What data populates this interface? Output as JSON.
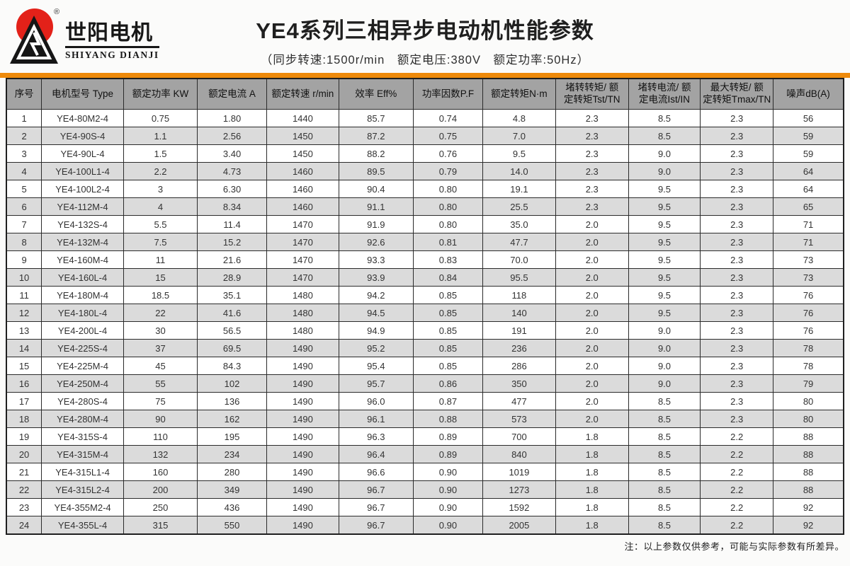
{
  "logo": {
    "name_cn": "世阳电机",
    "name_en": "SHIYANG DIANJI",
    "registered_mark": "®",
    "colors": {
      "sun_red": "#e32119",
      "mark_black": "#161616"
    }
  },
  "header": {
    "title": "YE4系列三相异步电动机性能参数",
    "subtitle": "（同步转速:1500r/min　额定电压:380V　额定功率:50Hz）"
  },
  "table": {
    "accent_color": "#ee8a0b",
    "header_bg": "#a3a3a3",
    "row_alt_bg": "#dbdbdb",
    "columns": [
      "序号",
      "电机型号 Type",
      "额定功率 KW",
      "额定电流 A",
      "额定转速 r/min",
      "效率 Eff%",
      "功率因数P.F",
      "额定转矩N·m",
      "堵转转矩/ 额\n定转矩Tst/TN",
      "堵转电流/ 额\n定电流Ist/IN",
      "最大转矩/ 额\n定转矩Tmax/TN",
      "噪声dB(A)"
    ],
    "rows": [
      [
        "1",
        "YE4-80M2-4",
        "0.75",
        "1.80",
        "1440",
        "85.7",
        "0.74",
        "4.8",
        "2.3",
        "8.5",
        "2.3",
        "56"
      ],
      [
        "2",
        "YE4-90S-4",
        "1.1",
        "2.56",
        "1450",
        "87.2",
        "0.75",
        "7.0",
        "2.3",
        "8.5",
        "2.3",
        "59"
      ],
      [
        "3",
        "YE4-90L-4",
        "1.5",
        "3.40",
        "1450",
        "88.2",
        "0.76",
        "9.5",
        "2.3",
        "9.0",
        "2.3",
        "59"
      ],
      [
        "4",
        "YE4-100L1-4",
        "2.2",
        "4.73",
        "1460",
        "89.5",
        "0.79",
        "14.0",
        "2.3",
        "9.0",
        "2.3",
        "64"
      ],
      [
        "5",
        "YE4-100L2-4",
        "3",
        "6.30",
        "1460",
        "90.4",
        "0.80",
        "19.1",
        "2.3",
        "9.5",
        "2.3",
        "64"
      ],
      [
        "6",
        "YE4-112M-4",
        "4",
        "8.34",
        "1460",
        "91.1",
        "0.80",
        "25.5",
        "2.3",
        "9.5",
        "2.3",
        "65"
      ],
      [
        "7",
        "YE4-132S-4",
        "5.5",
        "11.4",
        "1470",
        "91.9",
        "0.80",
        "35.0",
        "2.0",
        "9.5",
        "2.3",
        "71"
      ],
      [
        "8",
        "YE4-132M-4",
        "7.5",
        "15.2",
        "1470",
        "92.6",
        "0.81",
        "47.7",
        "2.0",
        "9.5",
        "2.3",
        "71"
      ],
      [
        "9",
        "YE4-160M-4",
        "11",
        "21.6",
        "1470",
        "93.3",
        "0.83",
        "70.0",
        "2.0",
        "9.5",
        "2.3",
        "73"
      ],
      [
        "10",
        "YE4-160L-4",
        "15",
        "28.9",
        "1470",
        "93.9",
        "0.84",
        "95.5",
        "2.0",
        "9.5",
        "2.3",
        "73"
      ],
      [
        "11",
        "YE4-180M-4",
        "18.5",
        "35.1",
        "1480",
        "94.2",
        "0.85",
        "118",
        "2.0",
        "9.5",
        "2.3",
        "76"
      ],
      [
        "12",
        "YE4-180L-4",
        "22",
        "41.6",
        "1480",
        "94.5",
        "0.85",
        "140",
        "2.0",
        "9.5",
        "2.3",
        "76"
      ],
      [
        "13",
        "YE4-200L-4",
        "30",
        "56.5",
        "1480",
        "94.9",
        "0.85",
        "191",
        "2.0",
        "9.0",
        "2.3",
        "76"
      ],
      [
        "14",
        "YE4-225S-4",
        "37",
        "69.5",
        "1490",
        "95.2",
        "0.85",
        "236",
        "2.0",
        "9.0",
        "2.3",
        "78"
      ],
      [
        "15",
        "YE4-225M-4",
        "45",
        "84.3",
        "1490",
        "95.4",
        "0.85",
        "286",
        "2.0",
        "9.0",
        "2.3",
        "78"
      ],
      [
        "16",
        "YE4-250M-4",
        "55",
        "102",
        "1490",
        "95.7",
        "0.86",
        "350",
        "2.0",
        "9.0",
        "2.3",
        "79"
      ],
      [
        "17",
        "YE4-280S-4",
        "75",
        "136",
        "1490",
        "96.0",
        "0.87",
        "477",
        "2.0",
        "8.5",
        "2.3",
        "80"
      ],
      [
        "18",
        "YE4-280M-4",
        "90",
        "162",
        "1490",
        "96.1",
        "0.88",
        "573",
        "2.0",
        "8.5",
        "2.3",
        "80"
      ],
      [
        "19",
        "YE4-315S-4",
        "110",
        "195",
        "1490",
        "96.3",
        "0.89",
        "700",
        "1.8",
        "8.5",
        "2.2",
        "88"
      ],
      [
        "20",
        "YE4-315M-4",
        "132",
        "234",
        "1490",
        "96.4",
        "0.89",
        "840",
        "1.8",
        "8.5",
        "2.2",
        "88"
      ],
      [
        "21",
        "YE4-315L1-4",
        "160",
        "280",
        "1490",
        "96.6",
        "0.90",
        "1019",
        "1.8",
        "8.5",
        "2.2",
        "88"
      ],
      [
        "22",
        "YE4-315L2-4",
        "200",
        "349",
        "1490",
        "96.7",
        "0.90",
        "1273",
        "1.8",
        "8.5",
        "2.2",
        "88"
      ],
      [
        "23",
        "YE4-355M2-4",
        "250",
        "436",
        "1490",
        "96.7",
        "0.90",
        "1592",
        "1.8",
        "8.5",
        "2.2",
        "92"
      ],
      [
        "24",
        "YE4-355L-4",
        "315",
        "550",
        "1490",
        "96.7",
        "0.90",
        "2005",
        "1.8",
        "8.5",
        "2.2",
        "92"
      ]
    ]
  },
  "footnote": "注：以上参数仅供参考，可能与实际参数有所差异。"
}
